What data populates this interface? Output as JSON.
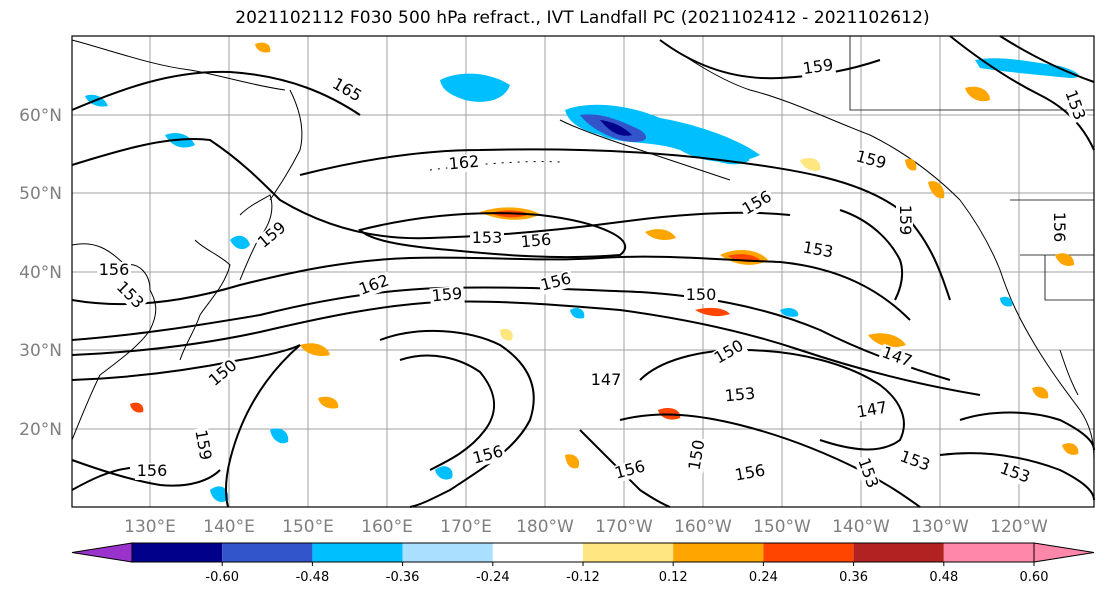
{
  "title": "2021102112 F030 500 hPa refract., IVT Landfall PC (2021102412 - 2021102612)",
  "map": {
    "lat_labels": [
      "60°N",
      "50°N",
      "40°N",
      "30°N",
      "20°N"
    ],
    "lon_labels": [
      "130°E",
      "140°E",
      "150°E",
      "160°E",
      "170°E",
      "180°W",
      "170°W",
      "160°W",
      "150°W",
      "140°W",
      "130°W",
      "120°W"
    ],
    "contour_labels": [
      "165",
      "159",
      "162",
      "159",
      "156",
      "153",
      "156",
      "159",
      "153",
      "156",
      "159",
      "162",
      "159",
      "156",
      "150",
      "150",
      "147",
      "153",
      "147",
      "147",
      "153",
      "153",
      "156",
      "156",
      "156",
      "150",
      "153",
      "159",
      "153",
      "156",
      "156",
      "150",
      "153"
    ]
  },
  "colorbar": {
    "colors": [
      "#9933cc",
      "#00008b",
      "#3355cc",
      "#00bfff",
      "#aadfff",
      "#ffffff",
      "#ffe680",
      "#ffa500",
      "#ff4500",
      "#b22222",
      "#ff88aa",
      "#ff88aa"
    ],
    "tick_labels": [
      "-0.60",
      "-0.48",
      "-0.36",
      "-0.24",
      "-0.12",
      "0.12",
      "0.24",
      "0.36",
      "0.48",
      "0.60"
    ]
  }
}
